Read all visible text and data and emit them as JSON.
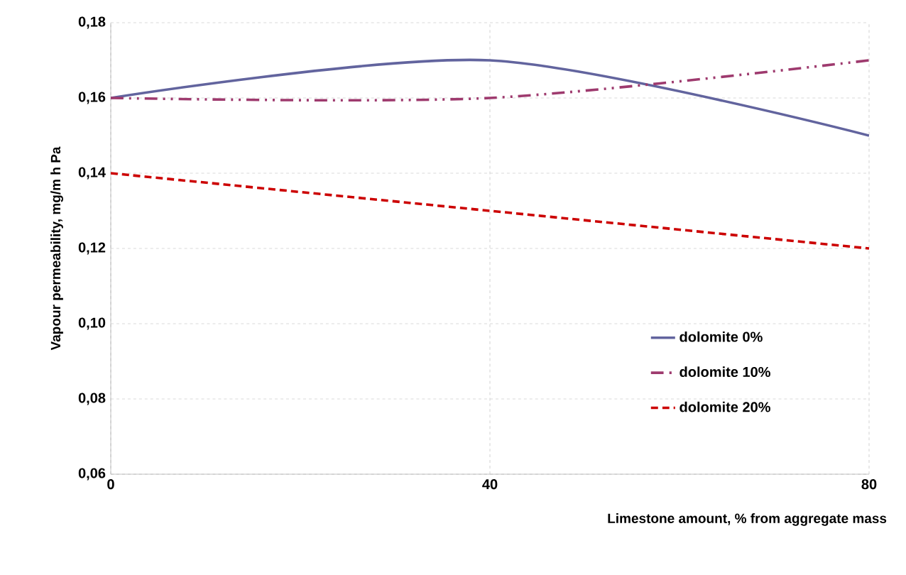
{
  "chart_data": {
    "type": "line",
    "xlabel": "Limestone amount, % from aggregate mass",
    "ylabel": "Vapour permeability, mg/m h Pa",
    "x": [
      0,
      40,
      80
    ],
    "series": [
      {
        "name": "dolomite 0%",
        "color": "#62649e",
        "line_style": "solid",
        "values": [
          0.16,
          0.17,
          0.15
        ]
      },
      {
        "name": "dolomite 10%",
        "color": "#9e3a6e",
        "line_style": "dashdotdotted",
        "values": [
          0.16,
          0.16,
          0.17
        ]
      },
      {
        "name": "dolomite 20%",
        "color": "#cc0000",
        "line_style": "dashed",
        "values": [
          0.14,
          0.13,
          0.12
        ]
      }
    ],
    "xlim": [
      0,
      80
    ],
    "xticks": [
      0,
      40,
      80
    ],
    "ylim": [
      0.06,
      0.18
    ],
    "yticks": [
      {
        "value": 0.06,
        "label": "0,06"
      },
      {
        "value": 0.08,
        "label": "0,08"
      },
      {
        "value": 0.1,
        "label": "0,10"
      },
      {
        "value": 0.12,
        "label": "0,12"
      },
      {
        "value": 0.14,
        "label": "0,14"
      },
      {
        "value": 0.16,
        "label": "0,16"
      },
      {
        "value": 0.18,
        "label": "0,18"
      }
    ],
    "grid": true,
    "legend": "bottom right",
    "marker": "none"
  }
}
